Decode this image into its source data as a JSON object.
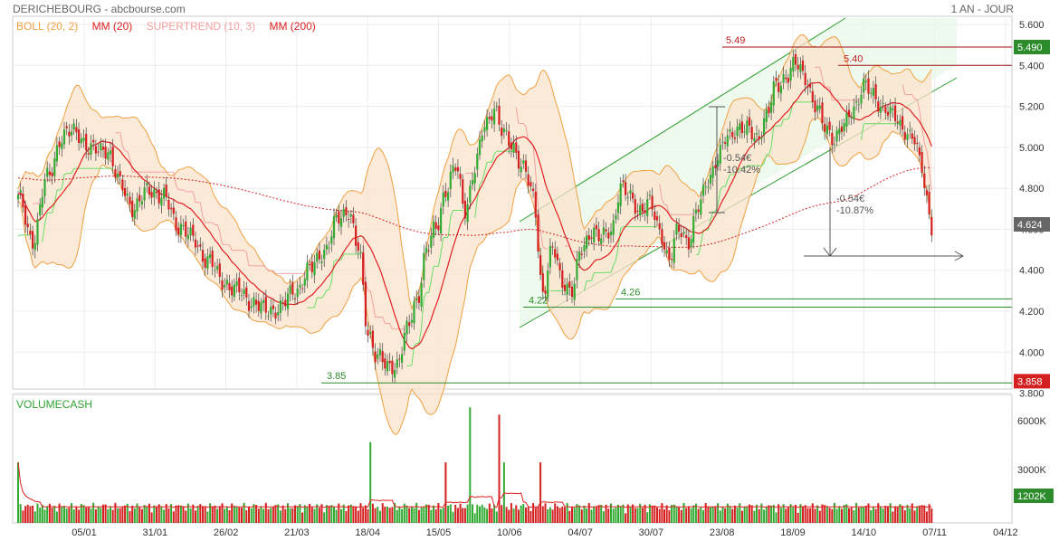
{
  "header": {
    "title": "DERICHEBOURG - abcbourse.com",
    "period": "1 AN - JOUR"
  },
  "legend": [
    {
      "label": "BOLL (20, 2)",
      "color": "#f0a040"
    },
    {
      "label": "MM (20)",
      "color": "#e02020"
    },
    {
      "label": "SUPERTREND (10, 3)",
      "color": "#f4a0a0"
    },
    {
      "label": "MM (200)",
      "color": "#e02020"
    }
  ],
  "chart_data": {
    "type": "candlestick",
    "price_axis": {
      "min": 3.82,
      "max": 5.64,
      "ticks": [
        "3.800",
        "4.000",
        "4.200",
        "4.400",
        "4.600",
        "4.800",
        "5.000",
        "5.200",
        "5.400",
        "5.600"
      ]
    },
    "x_ticks": [
      "05/01",
      "31/01",
      "26/02",
      "21/03",
      "18/04",
      "15/05",
      "10/06",
      "04/07",
      "30/07",
      "23/08",
      "18/09",
      "14/10",
      "07/11",
      "04/12"
    ],
    "price_tags": [
      {
        "label": "5.490",
        "value": 5.49,
        "color": "#2c8c2c"
      },
      {
        "label": "4.624",
        "value": 4.624,
        "color": "#666666"
      },
      {
        "label": "3.858",
        "value": 3.858,
        "color": "#d42020"
      }
    ],
    "annotations": {
      "levels": [
        "5.49",
        "5.40",
        "4.22",
        "4.26",
        "3.85"
      ],
      "moves": [
        {
          "change": "-0.54€",
          "pct": "-10.42%"
        },
        {
          "change": "-0.54€",
          "pct": "-10.87%"
        }
      ]
    },
    "close_keypoints": [
      [
        0,
        4.75
      ],
      [
        6,
        4.55
      ],
      [
        12,
        4.85
      ],
      [
        18,
        5.05
      ],
      [
        24,
        5.08
      ],
      [
        30,
        4.98
      ],
      [
        36,
        5.0
      ],
      [
        42,
        4.82
      ],
      [
        48,
        4.7
      ],
      [
        54,
        4.8
      ],
      [
        60,
        4.75
      ],
      [
        66,
        4.62
      ],
      [
        72,
        4.55
      ],
      [
        78,
        4.45
      ],
      [
        84,
        4.35
      ],
      [
        90,
        4.3
      ],
      [
        96,
        4.25
      ],
      [
        102,
        4.2
      ],
      [
        108,
        4.22
      ],
      [
        114,
        4.3
      ],
      [
        120,
        4.4
      ],
      [
        126,
        4.5
      ],
      [
        132,
        4.65
      ],
      [
        136,
        4.7
      ],
      [
        140,
        4.5
      ],
      [
        144,
        4.1
      ],
      [
        148,
        3.98
      ],
      [
        152,
        3.92
      ],
      [
        156,
        3.95
      ],
      [
        160,
        4.1
      ],
      [
        164,
        4.25
      ],
      [
        168,
        4.5
      ],
      [
        172,
        4.6
      ],
      [
        176,
        4.8
      ],
      [
        180,
        4.9
      ],
      [
        184,
        4.7
      ],
      [
        188,
        4.9
      ],
      [
        192,
        5.1
      ],
      [
        196,
        5.2
      ],
      [
        200,
        5.05
      ],
      [
        204,
        5.0
      ],
      [
        208,
        4.9
      ],
      [
        212,
        4.75
      ],
      [
        216,
        4.3
      ],
      [
        220,
        4.5
      ],
      [
        224,
        4.35
      ],
      [
        228,
        4.3
      ],
      [
        232,
        4.5
      ],
      [
        236,
        4.6
      ],
      [
        240,
        4.55
      ],
      [
        244,
        4.6
      ],
      [
        248,
        4.8
      ],
      [
        252,
        4.75
      ],
      [
        256,
        4.7
      ],
      [
        260,
        4.72
      ],
      [
        264,
        4.6
      ],
      [
        268,
        4.45
      ],
      [
        272,
        4.6
      ],
      [
        276,
        4.55
      ],
      [
        280,
        4.7
      ],
      [
        284,
        4.85
      ],
      [
        288,
        4.95
      ],
      [
        292,
        5.05
      ],
      [
        296,
        5.1
      ],
      [
        300,
        5.08
      ],
      [
        304,
        5.05
      ],
      [
        308,
        5.15
      ],
      [
        312,
        5.3
      ],
      [
        316,
        5.35
      ],
      [
        320,
        5.4
      ],
      [
        324,
        5.35
      ],
      [
        328,
        5.2
      ],
      [
        332,
        5.1
      ],
      [
        336,
        5.05
      ],
      [
        340,
        5.1
      ],
      [
        344,
        5.2
      ],
      [
        348,
        5.3
      ],
      [
        352,
        5.25
      ],
      [
        356,
        5.2
      ],
      [
        360,
        5.15
      ],
      [
        364,
        5.1
      ],
      [
        368,
        5.05
      ],
      [
        372,
        4.9
      ],
      [
        374,
        4.75
      ],
      [
        376,
        4.62
      ]
    ]
  },
  "volume": {
    "title": "VOLUMECASH",
    "ticks": [
      "6000K",
      "3000K"
    ],
    "last_tag": "1202K"
  }
}
